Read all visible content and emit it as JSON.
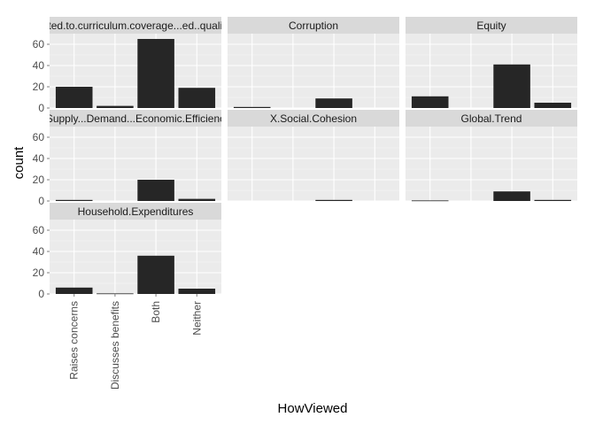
{
  "chart_data": {
    "type": "bar",
    "xlabel": "HowViewed",
    "ylabel": "count",
    "categories": [
      "Raises concerns",
      "Discusses benefits",
      "Both",
      "Neither"
    ],
    "ylim": [
      0,
      70
    ],
    "yticks": [
      0,
      20,
      40,
      60
    ],
    "ytick_labels": [
      "0",
      "20",
      "40",
      "60"
    ],
    "grid": true,
    "legend": "none",
    "facets": [
      {
        "label": "Related.to.curriculum.coverage...ed..quality...e",
        "values": [
          20,
          2,
          65,
          19
        ]
      },
      {
        "label": "Corruption",
        "values": [
          1,
          0,
          9,
          0
        ]
      },
      {
        "label": "Equity",
        "values": [
          11,
          0,
          41,
          5
        ]
      },
      {
        "label": "Supply...Demand...Economic.Efficienc",
        "values": [
          1,
          0,
          20,
          2
        ]
      },
      {
        "label": "X.Social.Cohesion",
        "values": [
          0,
          0,
          1,
          0
        ]
      },
      {
        "label": "Global.Trend",
        "values": [
          0.5,
          0,
          9,
          1
        ]
      },
      {
        "label": "Household.Expenditures",
        "values": [
          6,
          0.5,
          36,
          5
        ]
      }
    ]
  },
  "colors": {
    "panel_background": "#ebebeb",
    "grid_major": "#ffffff",
    "grid_minor": "#f5f5f5",
    "strip_background": "#d9d9d9",
    "bar_fill": "#262626",
    "tick_text": "#4d4d4d",
    "axis_title_text": "#000000"
  }
}
